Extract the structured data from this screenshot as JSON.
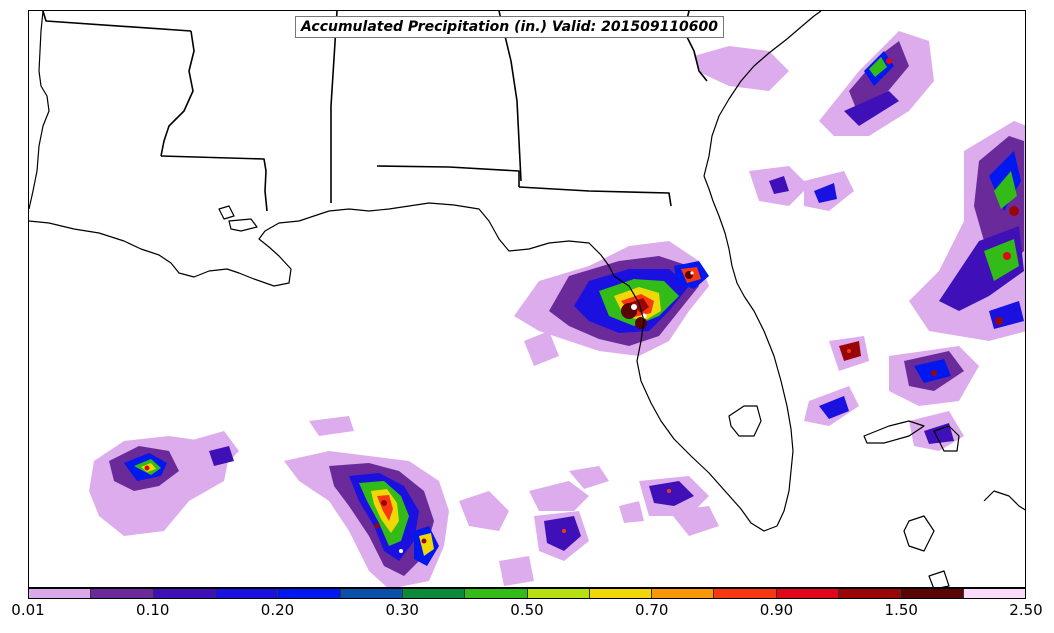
{
  "title": "Accumulated Precipitation (in.) Valid: 201509110600",
  "colorbar": {
    "colors": [
      "#dba8ec",
      "#6a2a9a",
      "#3f10b8",
      "#1a10e0",
      "#0018f0",
      "#0a50a8",
      "#0a8a3a",
      "#33bb18",
      "#b8e010",
      "#f0d808",
      "#f89808",
      "#f83810",
      "#e00818",
      "#9a0606",
      "#5a0404",
      "#fadcfa"
    ],
    "labels": [
      {
        "text": "0.01",
        "index": 0
      },
      {
        "text": "0.10",
        "index": 2
      },
      {
        "text": "0.20",
        "index": 4
      },
      {
        "text": "0.30",
        "index": 6
      },
      {
        "text": "0.50",
        "index": 8
      },
      {
        "text": "0.70",
        "index": 10
      },
      {
        "text": "0.90",
        "index": 12
      },
      {
        "text": "1.50",
        "index": 14
      },
      {
        "text": "2.50",
        "index": 16
      }
    ]
  },
  "map": {
    "state_line_color": "#000000",
    "coast_line_color": "#000000"
  }
}
